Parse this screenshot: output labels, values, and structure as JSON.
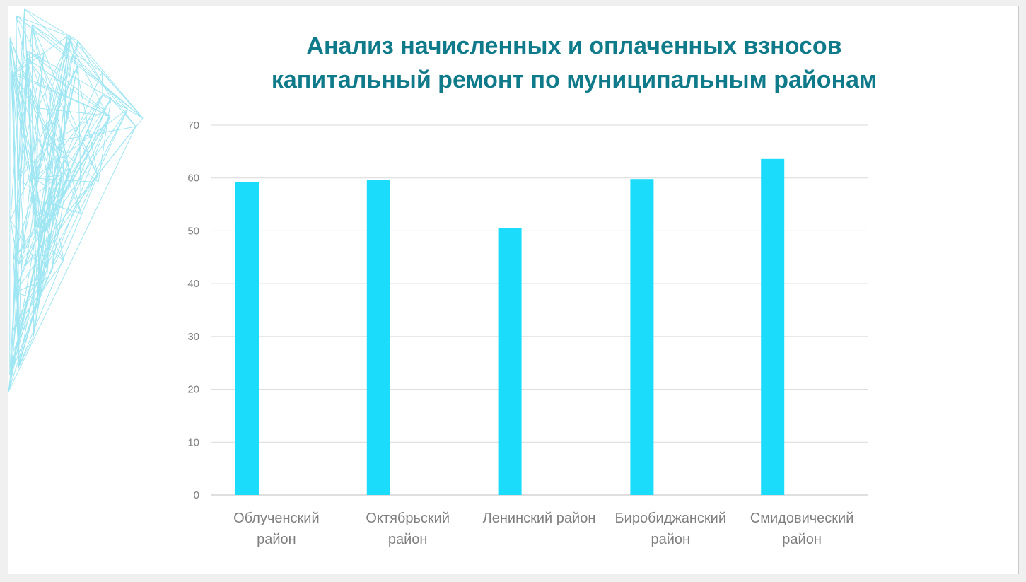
{
  "slide": {
    "title_line1": "Анализ начисленных и оплаченных взносов",
    "title_line2": "капитальный ремонт по муниципальным районам"
  },
  "colors": {
    "title": "#0f7a8a",
    "bar": "#1cdcfc",
    "grid": "#d9d9d9",
    "decor": "#9fe6f3"
  },
  "chart_data": {
    "type": "bar",
    "title": "Анализ начисленных и оплаченных взносов капитальный ремонт по муниципальным районам",
    "xlabel": "",
    "ylabel": "",
    "categories": [
      [
        "Облученский",
        "район"
      ],
      [
        "Октябрьский",
        "район"
      ],
      [
        "Ленинский район"
      ],
      [
        "Биробиджанский",
        "район"
      ],
      [
        "Смидовический",
        "район"
      ]
    ],
    "values": [
      59.2,
      59.6,
      50.5,
      59.8,
      63.6
    ],
    "ylim": [
      0,
      70
    ],
    "yticks": [
      0,
      10,
      20,
      30,
      40,
      50,
      60,
      70
    ],
    "grid": true,
    "legend": "none"
  }
}
